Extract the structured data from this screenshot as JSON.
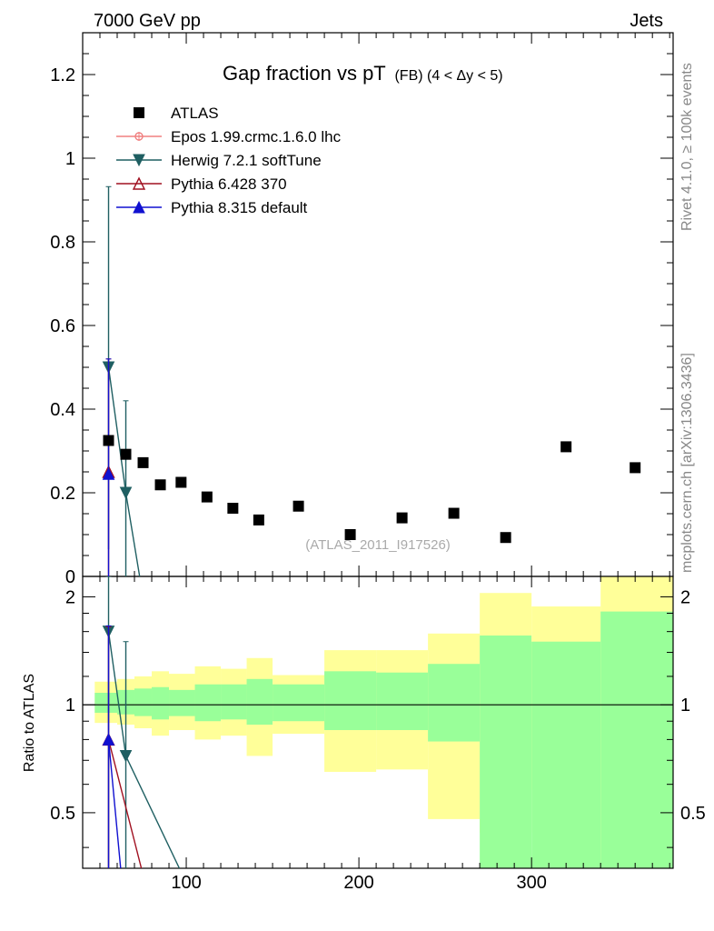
{
  "header": {
    "left": "7000 GeV pp",
    "right": "Jets"
  },
  "side_labels": {
    "rivet": "Rivet 4.1.0, ≥ 100k events",
    "mcplots": "mcplots.cern.ch [arXiv:1306.3436]"
  },
  "chart_data": {
    "type": "scatter",
    "title_main": "Gap fraction vs pT",
    "title_sub": "(FB)  (4 < Δy < 5)",
    "analysis_tag": "(ATLAS_2011_I917526)",
    "xlim": [
      40,
      382
    ],
    "ylim": [
      0,
      1.3
    ],
    "x_ticks": [
      100,
      200,
      300
    ],
    "y_ticks": [
      0,
      0.2,
      0.4,
      0.6,
      0.8,
      1,
      1.2
    ],
    "y_tick_labels": [
      "0",
      "0.2",
      "0.4",
      "0.6",
      "0.8",
      "1",
      "1.2"
    ],
    "ratio": {
      "ylabel": "Ratio to ATLAS",
      "ylim": [
        0.35,
        2.28
      ],
      "ticks": [
        0.5,
        1,
        2
      ],
      "tick_labels": [
        "0.5",
        "1",
        "2"
      ]
    },
    "data": {
      "name": "ATLAS",
      "points": [
        {
          "x": 55,
          "y": 0.325
        },
        {
          "x": 65,
          "y": 0.292
        },
        {
          "x": 75,
          "y": 0.272
        },
        {
          "x": 85,
          "y": 0.219
        },
        {
          "x": 97,
          "y": 0.225
        },
        {
          "x": 112,
          "y": 0.19
        },
        {
          "x": 127,
          "y": 0.163
        },
        {
          "x": 142,
          "y": 0.135
        },
        {
          "x": 165,
          "y": 0.168
        },
        {
          "x": 195,
          "y": 0.1
        },
        {
          "x": 225,
          "y": 0.14
        },
        {
          "x": 255,
          "y": 0.151
        },
        {
          "x": 285,
          "y": 0.093
        },
        {
          "x": 320,
          "y": 0.31
        },
        {
          "x": 360,
          "y": 0.26
        }
      ]
    },
    "bands": [
      {
        "x0": 47,
        "x1": 60,
        "inner": [
          0.95,
          1.08
        ],
        "outer": [
          0.89,
          1.16
        ]
      },
      {
        "x0": 60,
        "x1": 70,
        "inner": [
          0.94,
          1.1
        ],
        "outer": [
          0.88,
          1.18
        ]
      },
      {
        "x0": 70,
        "x1": 80,
        "inner": [
          0.93,
          1.11
        ],
        "outer": [
          0.86,
          1.2
        ]
      },
      {
        "x0": 80,
        "x1": 90,
        "inner": [
          0.91,
          1.12
        ],
        "outer": [
          0.82,
          1.24
        ]
      },
      {
        "x0": 90,
        "x1": 105,
        "inner": [
          0.93,
          1.1
        ],
        "outer": [
          0.85,
          1.22
        ]
      },
      {
        "x0": 105,
        "x1": 120,
        "inner": [
          0.9,
          1.14
        ],
        "outer": [
          0.8,
          1.28
        ]
      },
      {
        "x0": 120,
        "x1": 135,
        "inner": [
          0.91,
          1.14
        ],
        "outer": [
          0.82,
          1.26
        ]
      },
      {
        "x0": 135,
        "x1": 150,
        "inner": [
          0.88,
          1.18
        ],
        "outer": [
          0.72,
          1.35
        ]
      },
      {
        "x0": 150,
        "x1": 180,
        "inner": [
          0.9,
          1.14
        ],
        "outer": [
          0.83,
          1.21
        ]
      },
      {
        "x0": 180,
        "x1": 210,
        "inner": [
          0.85,
          1.24
        ],
        "outer": [
          0.65,
          1.42
        ]
      },
      {
        "x0": 210,
        "x1": 240,
        "inner": [
          0.85,
          1.23
        ],
        "outer": [
          0.66,
          1.42
        ]
      },
      {
        "x0": 240,
        "x1": 270,
        "inner": [
          0.79,
          1.3
        ],
        "outer": [
          0.48,
          1.58
        ]
      },
      {
        "x0": 270,
        "x1": 300,
        "inner": [
          0.35,
          1.56
        ],
        "outer": [
          0.44,
          2.05
        ]
      },
      {
        "x0": 300,
        "x1": 340,
        "inner": [
          0.35,
          1.5
        ],
        "outer": [
          0.58,
          1.88
        ]
      },
      {
        "x0": 340,
        "x1": 382,
        "inner": [
          0.35,
          1.82
        ],
        "outer": [
          0.35,
          2.28
        ]
      }
    ],
    "series": [
      {
        "name": "Epos 1.99.crmc.1.6.0 lhc",
        "color": "#f08080",
        "marker": "open-circle",
        "points": [],
        "ratio": []
      },
      {
        "name": "Herwig 7.2.1 softTune",
        "color": "#1f5f62",
        "marker": "triangle-down-filled",
        "points": [
          {
            "x": 55,
            "y": 0.5,
            "lo": 0.065,
            "hi": 0.932
          },
          {
            "x": 65,
            "y": 0.2,
            "lo": 0.0,
            "hi": 0.42
          }
        ],
        "line_to": {
          "x": 75,
          "y": -0.05
        },
        "ratio": [
          {
            "x": 55,
            "y": 1.6,
            "lo": 0.35,
            "hi": 2.28
          },
          {
            "x": 65,
            "y": 0.72,
            "lo": 0.35,
            "hi": 1.5
          },
          {
            "x": 96,
            "y": 0.35
          }
        ]
      },
      {
        "name": "Pythia 6.428 370",
        "color": "#a01020",
        "marker": "triangle-up-open",
        "points": [
          {
            "x": 55,
            "y": 0.25,
            "lo": 0.0,
            "hi": 0.52
          }
        ],
        "ratio": [
          {
            "x": 55,
            "y": 0.8,
            "lo": 0.35,
            "hi": 1.65
          },
          {
            "x": 74,
            "y": 0.35
          }
        ]
      },
      {
        "name": "Pythia 8.315 default",
        "color": "#1010d0",
        "marker": "triangle-up-filled",
        "points": [
          {
            "x": 55,
            "y": 0.245,
            "lo": 0.0,
            "hi": 0.52
          }
        ],
        "ratio": [
          {
            "x": 55,
            "y": 0.8,
            "lo": 0.35,
            "hi": 1.66
          },
          {
            "x": 62,
            "y": 0.35
          }
        ]
      }
    ]
  }
}
